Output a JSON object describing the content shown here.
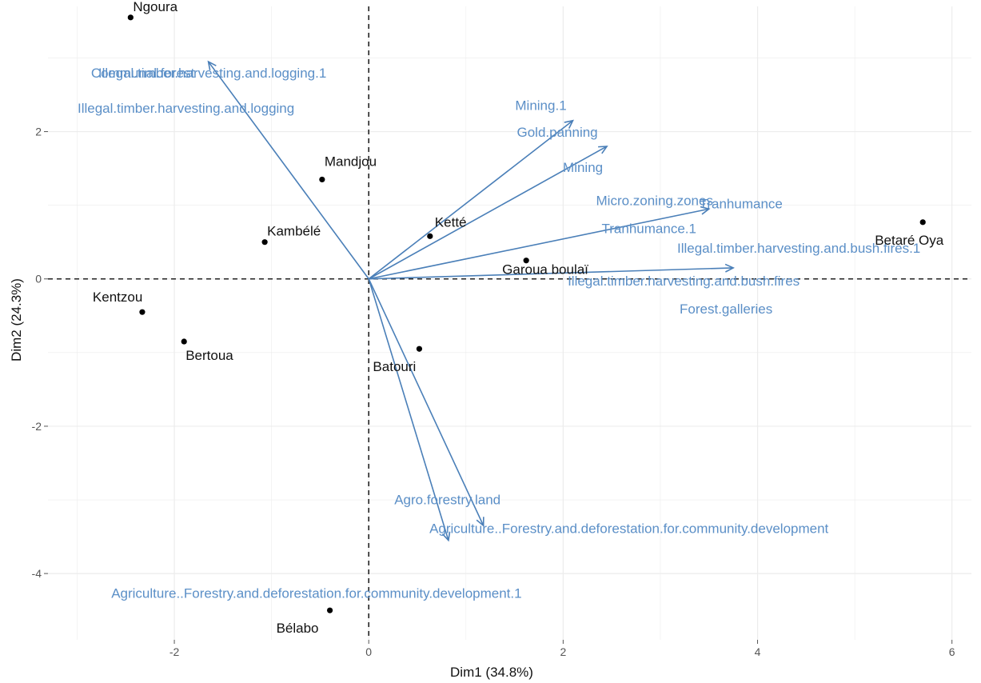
{
  "chart_data": {
    "type": "scatter",
    "subtype": "pca-biplot",
    "xlabel": "Dim1 (34.8%)",
    "ylabel": "Dim2 (24.3%)",
    "xlim": [
      -3.3,
      6.2
    ],
    "ylim": [
      -4.9,
      3.7
    ],
    "x_ticks": [
      -2,
      0,
      2,
      4,
      6
    ],
    "y_ticks": [
      -4,
      -2,
      0,
      2
    ],
    "grid": true,
    "reference_lines": {
      "x": 0,
      "y": 0,
      "style": "dashed"
    },
    "colors": {
      "points": "#000000",
      "arrows": "#4a7fb8",
      "labels": "#5b8fc7",
      "grid": "#ececec",
      "reference": "#222222"
    },
    "individuals": [
      {
        "name": "Ngoura",
        "x": -2.45,
        "y": 3.55
      },
      {
        "name": "Mandjou",
        "x": -0.48,
        "y": 1.35
      },
      {
        "name": "Kambélé",
        "x": -1.07,
        "y": 0.5
      },
      {
        "name": "Ketté",
        "x": 0.63,
        "y": 0.58
      },
      {
        "name": "Garoua boulaï",
        "x": 1.62,
        "y": 0.25
      },
      {
        "name": "Betaré Oya",
        "x": 5.7,
        "y": 0.77
      },
      {
        "name": "Kentzou",
        "x": -2.33,
        "y": -0.45
      },
      {
        "name": "Bertoua",
        "x": -1.9,
        "y": -0.85
      },
      {
        "name": "Batouri",
        "x": 0.52,
        "y": -0.95
      },
      {
        "name": "Bélabo",
        "x": -0.4,
        "y": -4.5
      }
    ],
    "variables": [
      {
        "name": "Communal.forest",
        "x": -1.65,
        "y": 2.95
      },
      {
        "name": "Illegal.timber.harvesting.and.logging.1",
        "x": -1.65,
        "y": 2.95
      },
      {
        "name": "Illegal.timber.harvesting.and.logging",
        "x": -1.65,
        "y": 2.95
      },
      {
        "name": "Mining.1",
        "x": 2.1,
        "y": 2.15
      },
      {
        "name": "Gold.panning",
        "x": 2.45,
        "y": 1.8
      },
      {
        "name": "Mining",
        "x": 2.45,
        "y": 1.8
      },
      {
        "name": "Micro.zoning.zones",
        "x": 3.5,
        "y": 0.95
      },
      {
        "name": "Tranhumance",
        "x": 3.5,
        "y": 0.95
      },
      {
        "name": "Tranhumance.1",
        "x": 3.5,
        "y": 0.95
      },
      {
        "name": "Illegal.timber.harvesting.and.bush.fires.1",
        "x": 3.75,
        "y": 0.15
      },
      {
        "name": "Illegal.timber.harvesting.and.bush.fires",
        "x": 3.75,
        "y": 0.15
      },
      {
        "name": "Forest.galleries",
        "x": 3.75,
        "y": 0.15
      },
      {
        "name": "Agro.forestry.land",
        "x": 1.18,
        "y": -3.35
      },
      {
        "name": "Agriculture..Forestry.and.deforestation.for.community.development",
        "x": 1.18,
        "y": -3.35
      },
      {
        "name": "Agriculture..Forestry.and.deforestation.for.community.development.1",
        "x": 0.82,
        "y": -3.55
      }
    ]
  }
}
